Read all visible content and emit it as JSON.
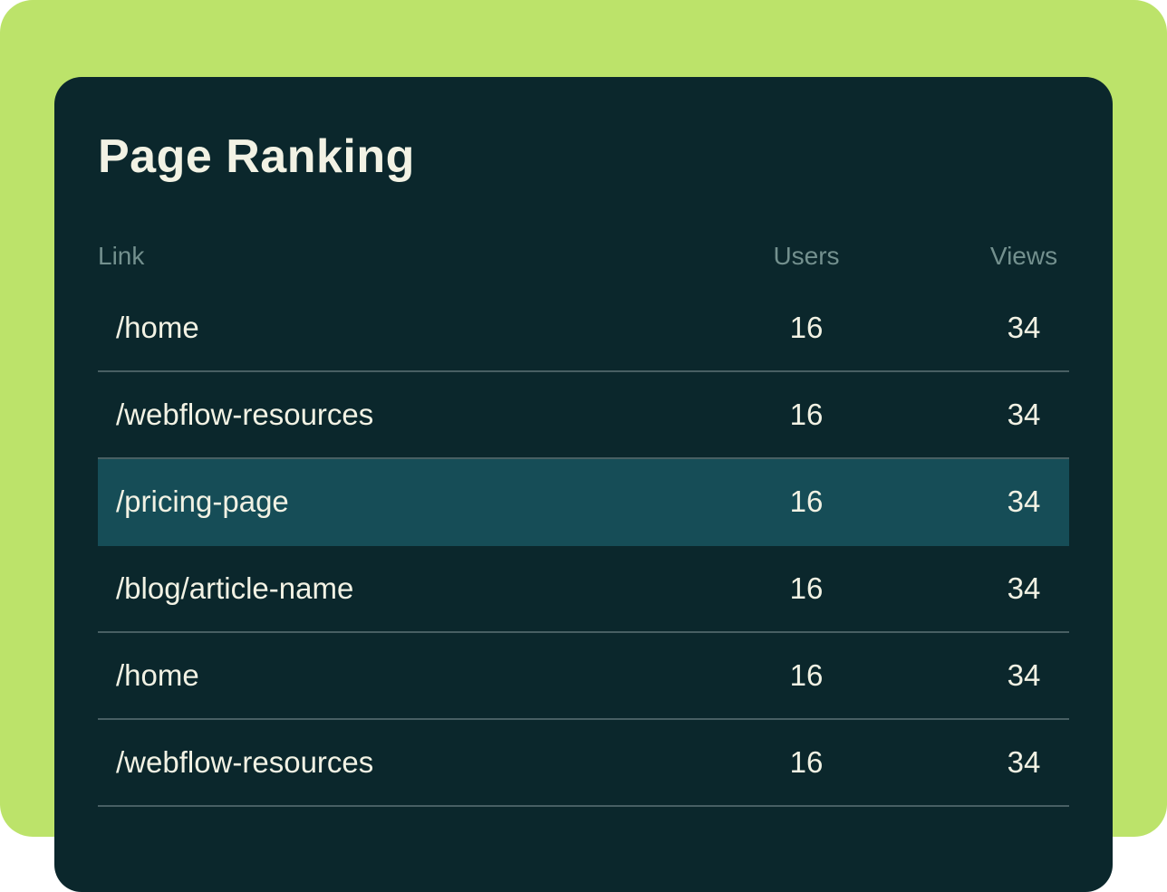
{
  "card": {
    "title": "Page Ranking",
    "table": {
      "columns": [
        {
          "key": "link",
          "label": "Link"
        },
        {
          "key": "users",
          "label": "Users"
        },
        {
          "key": "views",
          "label": "Views"
        }
      ],
      "rows": [
        {
          "link": "/home",
          "users": "16",
          "views": "34",
          "highlighted": false
        },
        {
          "link": "/webflow-resources",
          "users": "16",
          "views": "34",
          "highlighted": false
        },
        {
          "link": "/pricing-page",
          "users": "16",
          "views": "34",
          "highlighted": true
        },
        {
          "link": "/blog/article-name",
          "users": "16",
          "views": "34",
          "highlighted": false
        },
        {
          "link": "/home",
          "users": "16",
          "views": "34",
          "highlighted": false
        },
        {
          "link": "/webflow-resources",
          "users": "16",
          "views": "34",
          "highlighted": false
        }
      ]
    }
  },
  "colors": {
    "page-white": "#ffffff",
    "background-green": "#bce36a",
    "card-bg": "#0b272c",
    "row-highlight": "#164d57",
    "text-cream": "#f2f2e4",
    "text-muted": "#73908e",
    "divider": "#485f63"
  }
}
